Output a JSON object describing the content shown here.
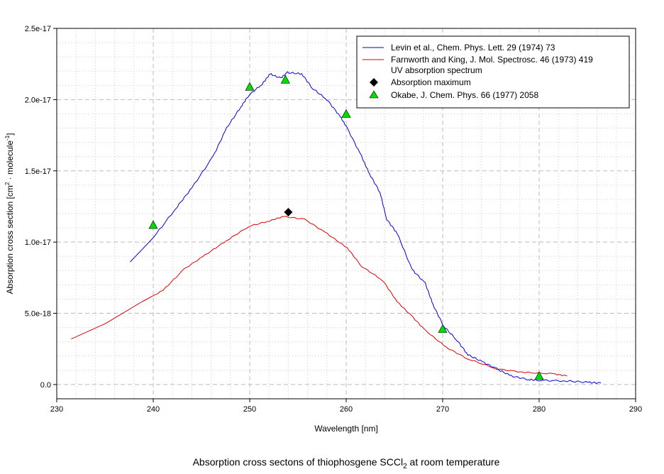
{
  "chart_data": {
    "type": "line",
    "title_parts": [
      "Absorption cross sectons of thiophosgene SCCl",
      "2",
      " at room temperature"
    ],
    "xlabel": "Wavelength [nm]",
    "ylabel_parts": [
      "Absorption cross section [cm",
      "2",
      " · molecule",
      "-1",
      "]"
    ],
    "xlim": [
      230,
      290
    ],
    "ylim": [
      -1e-18,
      2.5e-17
    ],
    "xticks": [
      230,
      240,
      250,
      260,
      270,
      280,
      290
    ],
    "xtick_labels": [
      "230",
      "240",
      "250",
      "260",
      "270",
      "280",
      "290"
    ],
    "yticks": [
      0,
      5e-18,
      1e-17,
      1.5e-17,
      2e-17,
      2.5e-17
    ],
    "ytick_labels": [
      "0.0",
      "5.0e-18",
      "1.0e-17",
      "1.5e-17",
      "2.0e-17",
      "2.5e-17"
    ],
    "grid": true,
    "legend_position": "top-right",
    "series": [
      {
        "name": "Levin et al., Chem. Phys. Lett. 29 (1974) 73",
        "color": "#0000dd",
        "kind": "line",
        "x": [
          237.6,
          240,
          242.5,
          244,
          246.2,
          247.6,
          249.1,
          249.9,
          251.3,
          252.1,
          253.2,
          253.9,
          255.4,
          256.5,
          258,
          259.4,
          260.1,
          261.6,
          262.4,
          263.5,
          264.2,
          265.3,
          266.8,
          268.2,
          269,
          270.1,
          271.5,
          272.6,
          274.1,
          275.6,
          277.1,
          278.9,
          280,
          282.9,
          285.1,
          286.4
        ],
        "y": [
          8.6e-18,
          1.03e-17,
          1.25e-17,
          1.38e-17,
          1.6e-17,
          1.8e-17,
          1.95e-17,
          2.03e-17,
          2.11e-17,
          2.18e-17,
          2.15e-17,
          2.19e-17,
          2.18e-17,
          2.08e-17,
          2e-17,
          1.88e-17,
          1.8e-17,
          1.6e-17,
          1.48e-17,
          1.35e-17,
          1.16e-17,
          1.06e-17,
          8.1e-18,
          7.1e-18,
          5.6e-18,
          4.1e-18,
          3.1e-18,
          2.1e-18,
          1.6e-18,
          1.1e-18,
          6e-19,
          3.5e-19,
          3e-19,
          2.5e-19,
          1.5e-19,
          1e-19
        ]
      },
      {
        "name": "Farnworth and King, J. Mol. Spectrosc. 46 (1973) 419",
        "name2": "UV absorption spectrum",
        "color": "#dd0000",
        "kind": "line",
        "x": [
          231.5,
          235.1,
          238.8,
          241,
          243.2,
          245.4,
          247.6,
          249.9,
          252.1,
          253.5,
          255.7,
          258,
          260.1,
          261.6,
          263.8,
          265.3,
          266.8,
          268.2,
          270.4,
          272.6,
          275.6,
          278.5,
          281.5,
          282.9
        ],
        "y": [
          3.2e-18,
          4.3e-18,
          5.8e-18,
          6.6e-18,
          8.1e-18,
          9.1e-18,
          1.01e-17,
          1.11e-17,
          1.15e-17,
          1.18e-17,
          1.16e-17,
          1.06e-17,
          9.6e-18,
          8.3e-18,
          7.3e-18,
          5.8e-18,
          4.8e-18,
          3.8e-18,
          2.6e-18,
          1.8e-18,
          1.1e-18,
          8.5e-19,
          7.5e-19,
          6e-19
        ]
      },
      {
        "name": "Absorption maximum",
        "color": "#000000",
        "kind": "diamond",
        "x": [
          254
        ],
        "y": [
          1.21e-17
        ]
      },
      {
        "name": "Okabe, J. Chem. Phys. 66 (1977) 2058",
        "color": "#00dd00",
        "kind": "triangle",
        "x": [
          240,
          250,
          253.7,
          260,
          270,
          280
        ],
        "y": [
          1.12e-17,
          2.09e-17,
          2.14e-17,
          1.9e-17,
          3.9e-18,
          6e-19
        ]
      }
    ]
  }
}
